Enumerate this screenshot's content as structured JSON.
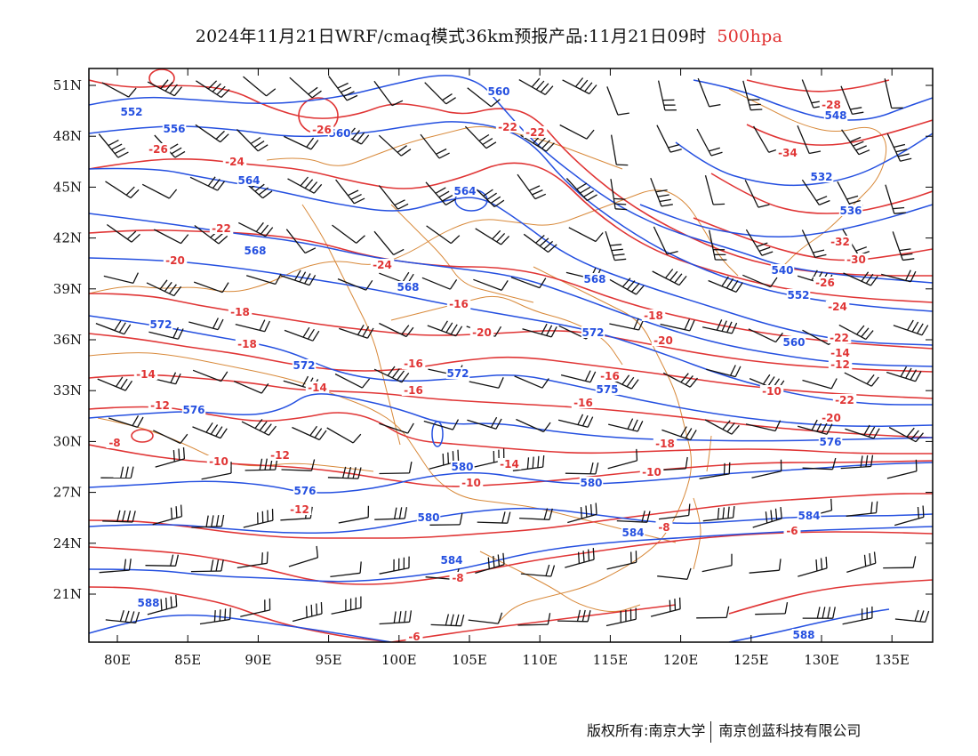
{
  "title": {
    "text": "2024年11月21日WRF/cmaq模式36km预报产品:11月21日09时",
    "level": "500hpa",
    "level_color": "#e03030"
  },
  "axes": {
    "lat_labels": [
      "51N",
      "48N",
      "45N",
      "42N",
      "39N",
      "36N",
      "33N",
      "30N",
      "27N",
      "24N",
      "21N"
    ],
    "lon_labels": [
      "80E",
      "85E",
      "90E",
      "95E",
      "100E",
      "105E",
      "110E",
      "115E",
      "120E",
      "125E",
      "130E",
      "135E"
    ]
  },
  "colors": {
    "geopotential_height": "#2550e0",
    "temperature": "#e03535",
    "borders": "#d8893a",
    "wind_barbs": "#111111"
  },
  "height_contour_labels": [
    "552",
    "556",
    "560",
    "560",
    "564",
    "564",
    "568",
    "568",
    "572",
    "572",
    "572",
    "576",
    "576",
    "580",
    "580",
    "580",
    "584",
    "584",
    "588",
    "588",
    "532",
    "536",
    "540",
    "548",
    "552",
    "560",
    "568",
    "572",
    "575",
    "576",
    "584"
  ],
  "temperature_contour_labels": [
    "-26",
    "-26",
    "-24",
    "-24",
    "-22",
    "-22",
    "-22",
    "-20",
    "-20",
    "-18",
    "-18",
    "-16",
    "-16",
    "-16",
    "-16",
    "-14",
    "-14",
    "-14",
    "-12",
    "-12",
    "-12",
    "-10",
    "-10",
    "-10",
    "-8",
    "-8",
    "-8",
    "-6",
    "-6",
    "-34",
    "-32",
    "-30",
    "-28",
    "-26",
    "-24",
    "-22",
    "-20",
    "-18",
    "-16",
    "-14",
    "-12",
    "-10",
    "-22",
    "-20",
    "-18"
  ],
  "footer": {
    "left": "版权所有:南京大学",
    "right": "南京创蓝科技有限公司"
  }
}
